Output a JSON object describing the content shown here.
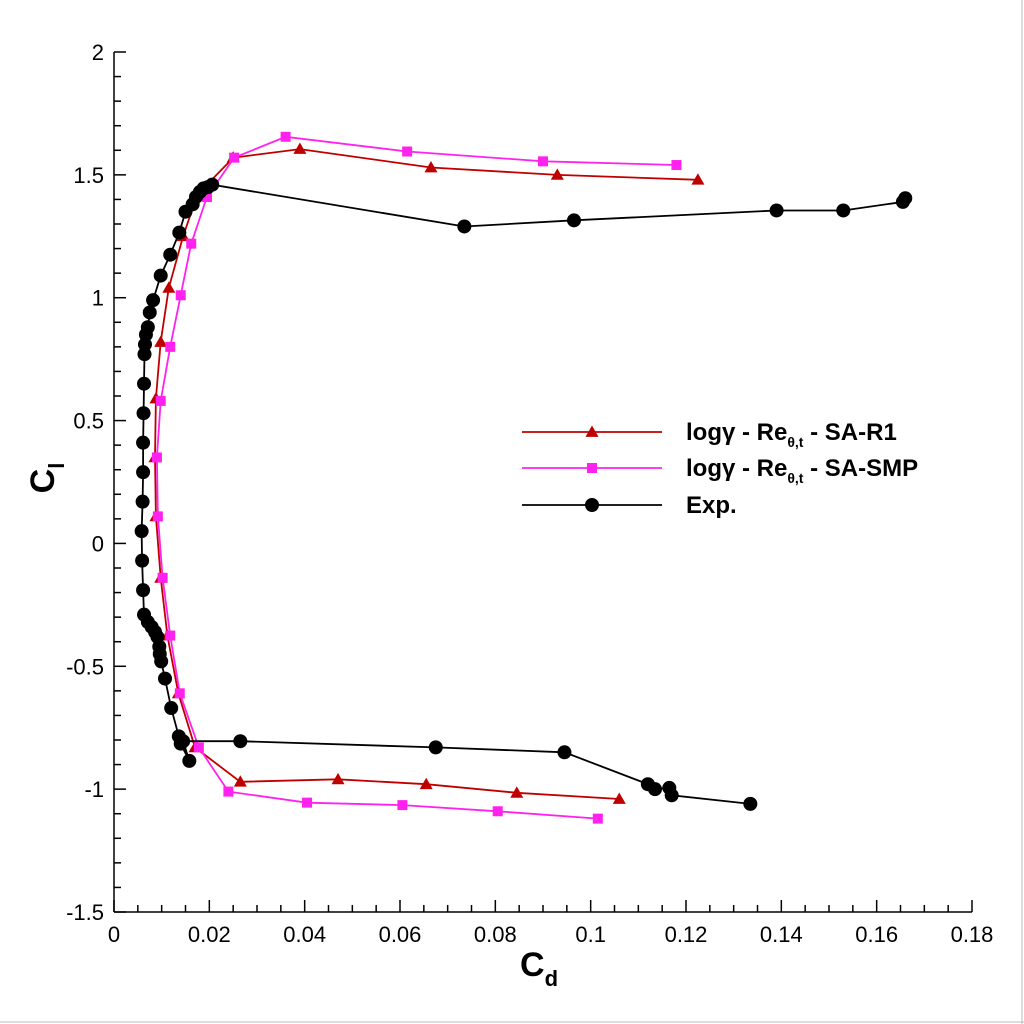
{
  "chart_data": {
    "type": "line",
    "title": "",
    "xlabel": {
      "main": "C",
      "sub": "d"
    },
    "ylabel": {
      "main": "C",
      "sub": "l"
    },
    "xlim": [
      0,
      0.18
    ],
    "ylim": [
      -1.5,
      2
    ],
    "xticks": [
      {
        "value": 0,
        "label": "0"
      },
      {
        "value": 0.02,
        "label": "0.02"
      },
      {
        "value": 0.04,
        "label": "0.04"
      },
      {
        "value": 0.06,
        "label": "0.06"
      },
      {
        "value": 0.08,
        "label": "0.08"
      },
      {
        "value": 0.1,
        "label": "0.1"
      },
      {
        "value": 0.12,
        "label": "0.12"
      },
      {
        "value": 0.14,
        "label": "0.14"
      },
      {
        "value": 0.16,
        "label": "0.16"
      },
      {
        "value": 0.18,
        "label": "0.18"
      }
    ],
    "yticks": [
      {
        "value": -1.5,
        "label": "-1.5"
      },
      {
        "value": -1,
        "label": "-1"
      },
      {
        "value": -0.5,
        "label": "-0.5"
      },
      {
        "value": 0,
        "label": "0"
      },
      {
        "value": 0.5,
        "label": "0.5"
      },
      {
        "value": 1,
        "label": "1"
      },
      {
        "value": 1.5,
        "label": "1.5"
      },
      {
        "value": 2,
        "label": "2"
      }
    ],
    "legend_position": "right-middle",
    "series": [
      {
        "name": "SA-R1",
        "legend_main": "logγ - Re",
        "legend_sub": "θ,t",
        "legend_tail": " - SA-R1",
        "color": "#c00000",
        "marker": "triangle",
        "points": [
          [
            0.106,
            -1.04
          ],
          [
            0.0845,
            -1.015
          ],
          [
            0.0655,
            -0.98
          ],
          [
            0.047,
            -0.96
          ],
          [
            0.0265,
            -0.97
          ],
          [
            0.017,
            -0.83
          ],
          [
            0.0135,
            -0.61
          ],
          [
            0.0112,
            -0.375
          ],
          [
            0.0098,
            -0.14
          ],
          [
            0.0088,
            0.11
          ],
          [
            0.0086,
            0.35
          ],
          [
            0.0088,
            0.59
          ],
          [
            0.0098,
            0.82
          ],
          [
            0.0115,
            1.04
          ],
          [
            0.0145,
            1.25
          ],
          [
            0.0175,
            1.42
          ],
          [
            0.025,
            1.57
          ],
          [
            0.039,
            1.605
          ],
          [
            0.0665,
            1.53
          ],
          [
            0.093,
            1.5
          ],
          [
            0.1225,
            1.48
          ]
        ]
      },
      {
        "name": "SA-SMP",
        "legend_main": "logγ - Re",
        "legend_sub": "θ,t",
        "legend_tail": " - SA-SMP",
        "color": "#ff22ee",
        "marker": "square",
        "points": [
          [
            0.1015,
            -1.12
          ],
          [
            0.0805,
            -1.09
          ],
          [
            0.0605,
            -1.065
          ],
          [
            0.0405,
            -1.055
          ],
          [
            0.024,
            -1.01
          ],
          [
            0.0178,
            -0.83
          ],
          [
            0.0138,
            -0.61
          ],
          [
            0.0118,
            -0.375
          ],
          [
            0.0102,
            -0.14
          ],
          [
            0.0092,
            0.11
          ],
          [
            0.009,
            0.35
          ],
          [
            0.0098,
            0.58
          ],
          [
            0.0118,
            0.8
          ],
          [
            0.014,
            1.01
          ],
          [
            0.0162,
            1.22
          ],
          [
            0.0195,
            1.41
          ],
          [
            0.0252,
            1.57
          ],
          [
            0.036,
            1.655
          ],
          [
            0.0615,
            1.595
          ],
          [
            0.09,
            1.555
          ],
          [
            0.118,
            1.54
          ]
        ]
      },
      {
        "name": "Exp.",
        "legend_main": "Exp.",
        "legend_sub": "",
        "legend_tail": "",
        "color": "#000000",
        "marker": "circle",
        "points": [
          [
            0.1335,
            -1.06
          ],
          [
            0.117,
            -1.025
          ],
          [
            0.1165,
            -0.995
          ],
          [
            0.1135,
            -1.0
          ],
          [
            0.112,
            -0.98
          ],
          [
            0.0945,
            -0.85
          ],
          [
            0.0675,
            -0.83
          ],
          [
            0.0265,
            -0.805
          ],
          [
            0.0145,
            -0.805
          ],
          [
            0.0158,
            -0.885
          ],
          [
            0.014,
            -0.815
          ],
          [
            0.0136,
            -0.785
          ],
          [
            0.012,
            -0.67
          ],
          [
            0.0107,
            -0.55
          ],
          [
            0.0099,
            -0.48
          ],
          [
            0.0096,
            -0.45
          ],
          [
            0.0095,
            -0.42
          ],
          [
            0.0091,
            -0.38
          ],
          [
            0.0086,
            -0.36
          ],
          [
            0.0079,
            -0.34
          ],
          [
            0.0071,
            -0.32
          ],
          [
            0.0063,
            -0.29
          ],
          [
            0.0061,
            -0.19
          ],
          [
            0.0059,
            -0.07
          ],
          [
            0.0058,
            0.05
          ],
          [
            0.006,
            0.17
          ],
          [
            0.0061,
            0.29
          ],
          [
            0.0061,
            0.41
          ],
          [
            0.0062,
            0.53
          ],
          [
            0.0063,
            0.65
          ],
          [
            0.0064,
            0.77
          ],
          [
            0.0065,
            0.81
          ],
          [
            0.0067,
            0.85
          ],
          [
            0.0071,
            0.88
          ],
          [
            0.0075,
            0.94
          ],
          [
            0.0082,
            0.99
          ],
          [
            0.0098,
            1.09
          ],
          [
            0.0118,
            1.175
          ],
          [
            0.0137,
            1.265
          ],
          [
            0.015,
            1.35
          ],
          [
            0.0165,
            1.38
          ],
          [
            0.0172,
            1.41
          ],
          [
            0.018,
            1.43
          ],
          [
            0.0188,
            1.445
          ],
          [
            0.0197,
            1.45
          ],
          [
            0.0206,
            1.46
          ],
          [
            0.0735,
            1.29
          ],
          [
            0.0965,
            1.315
          ],
          [
            0.139,
            1.355
          ],
          [
            0.153,
            1.355
          ],
          [
            0.1655,
            1.39
          ],
          [
            0.166,
            1.405
          ]
        ]
      }
    ]
  }
}
